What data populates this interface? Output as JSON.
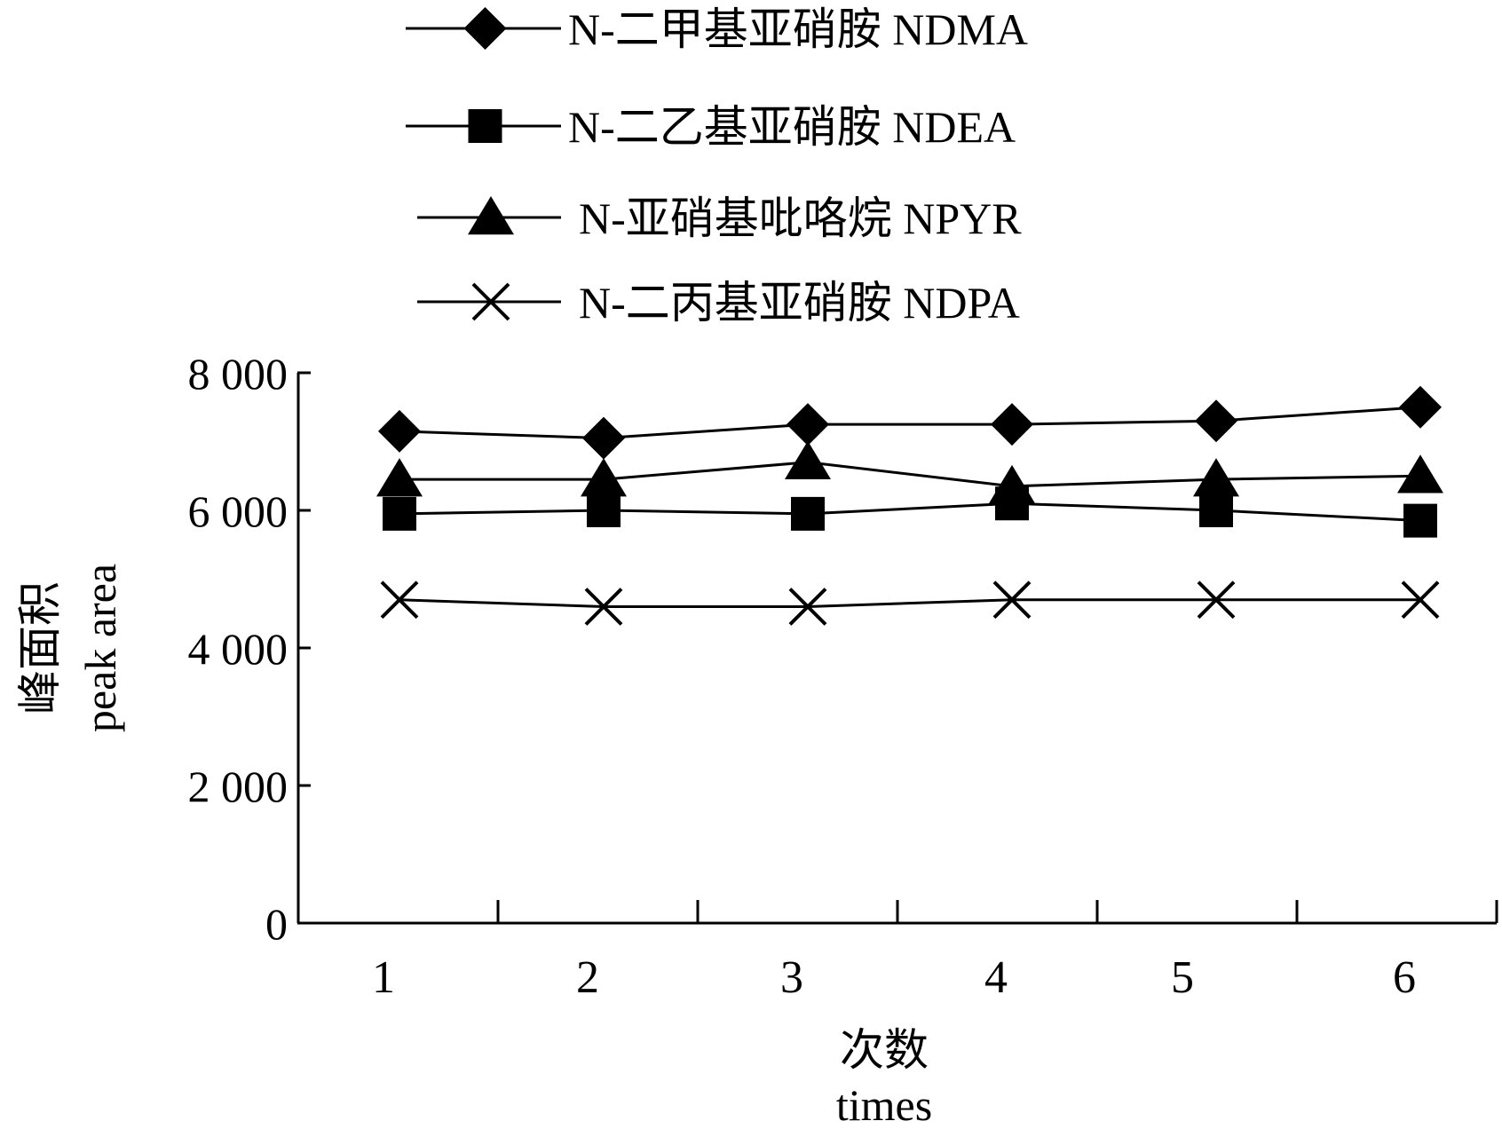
{
  "chart_data": {
    "type": "line",
    "xlabel_cn": "次数",
    "xlabel_en": "times",
    "ylabel_cn": "峰面积",
    "ylabel_en": "peak area",
    "x": [
      1,
      2,
      3,
      4,
      5,
      6
    ],
    "xticks": [
      "1",
      "2",
      "3",
      "4",
      "5",
      "6"
    ],
    "ylim": [
      0,
      8000
    ],
    "yticks": [
      0,
      2000,
      4000,
      6000,
      8000
    ],
    "ytick_labels": [
      "0",
      "2 000",
      "4 000",
      "6 000",
      "8 000"
    ],
    "grid": false,
    "legend_position": "top",
    "series": [
      {
        "name": "N-二甲基亚硝胺 NDMA",
        "marker": "diamond",
        "values": [
          7150,
          7050,
          7250,
          7250,
          7300,
          7500
        ]
      },
      {
        "name": "N-二乙基亚硝胺 NDEA",
        "marker": "square",
        "values": [
          5950,
          6000,
          5950,
          6100,
          6000,
          5850
        ]
      },
      {
        "name": "N-亚硝基吡咯烷 NPYR",
        "marker": "triangle",
        "values": [
          6450,
          6450,
          6700,
          6350,
          6450,
          6500
        ]
      },
      {
        "name": "N-二丙基亚硝胺 NDPA",
        "marker": "x",
        "values": [
          4700,
          4600,
          4600,
          4700,
          4700,
          4700
        ]
      }
    ]
  }
}
